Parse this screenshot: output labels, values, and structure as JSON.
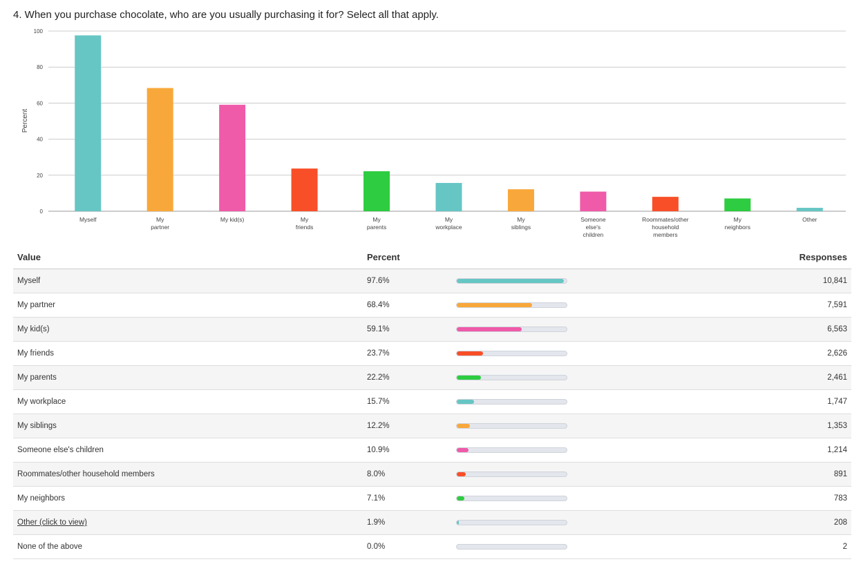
{
  "title": "4. When you purchase chocolate, who are you usually purchasing it for? Select all that apply.",
  "chart_data": {
    "type": "bar",
    "title": "4. When you purchase chocolate, who are you usually purchasing it for? Select all that apply.",
    "ylabel": "Percent",
    "xlabel": "",
    "ylim": [
      0,
      100
    ],
    "yticks": [
      0,
      20,
      40,
      60,
      80,
      100
    ],
    "grid": true,
    "categories": [
      [
        "Myself"
      ],
      [
        "My",
        "partner"
      ],
      [
        "My kid(s)"
      ],
      [
        "My",
        "friends"
      ],
      [
        "My",
        "parents"
      ],
      [
        "My",
        "workplace"
      ],
      [
        "My",
        "siblings"
      ],
      [
        "Someone",
        "else's",
        "children"
      ],
      [
        "Roommates/other",
        "household",
        "members"
      ],
      [
        "My",
        "neighbors"
      ],
      [
        "Other"
      ]
    ],
    "values": [
      97.6,
      68.4,
      59.1,
      23.7,
      22.2,
      15.7,
      12.2,
      10.9,
      8.0,
      7.1,
      1.9
    ],
    "colors": [
      "#66c6c4",
      "#f8a83a",
      "#ef5aa9",
      "#f84f28",
      "#2ecc40",
      "#66c6c4",
      "#f8a83a",
      "#ef5aa9",
      "#f84f28",
      "#2ecc40",
      "#66c6c4"
    ]
  },
  "table": {
    "headers": {
      "value": "Value",
      "percent": "Percent",
      "responses": "Responses"
    },
    "rows": [
      {
        "value": "Myself",
        "percent": "97.6%",
        "pct": 97.6,
        "responses": "10,841",
        "color": "#66c6c4"
      },
      {
        "value": "My partner",
        "percent": "68.4%",
        "pct": 68.4,
        "responses": "7,591",
        "color": "#f8a83a"
      },
      {
        "value": "My kid(s)",
        "percent": "59.1%",
        "pct": 59.1,
        "responses": "6,563",
        "color": "#ef5aa9"
      },
      {
        "value": "My friends",
        "percent": "23.7%",
        "pct": 23.7,
        "responses": "2,626",
        "color": "#f84f28"
      },
      {
        "value": "My parents",
        "percent": "22.2%",
        "pct": 22.2,
        "responses": "2,461",
        "color": "#2ecc40"
      },
      {
        "value": "My workplace",
        "percent": "15.7%",
        "pct": 15.7,
        "responses": "1,747",
        "color": "#66c6c4"
      },
      {
        "value": "My siblings",
        "percent": "12.2%",
        "pct": 12.2,
        "responses": "1,353",
        "color": "#f8a83a"
      },
      {
        "value": "Someone else's children",
        "percent": "10.9%",
        "pct": 10.9,
        "responses": "1,214",
        "color": "#ef5aa9"
      },
      {
        "value": "Roommates/other household members",
        "percent": "8.0%",
        "pct": 8.0,
        "responses": "891",
        "color": "#f84f28"
      },
      {
        "value": "My neighbors",
        "percent": "7.1%",
        "pct": 7.1,
        "responses": "783",
        "color": "#2ecc40"
      },
      {
        "value": "Other (click to view)",
        "percent": "1.9%",
        "pct": 1.9,
        "responses": "208",
        "color": "#66c6c4",
        "link": true
      },
      {
        "value": "None of the above",
        "percent": "0.0%",
        "pct": 0.0,
        "responses": "2",
        "color": "#66c6c4"
      }
    ]
  }
}
